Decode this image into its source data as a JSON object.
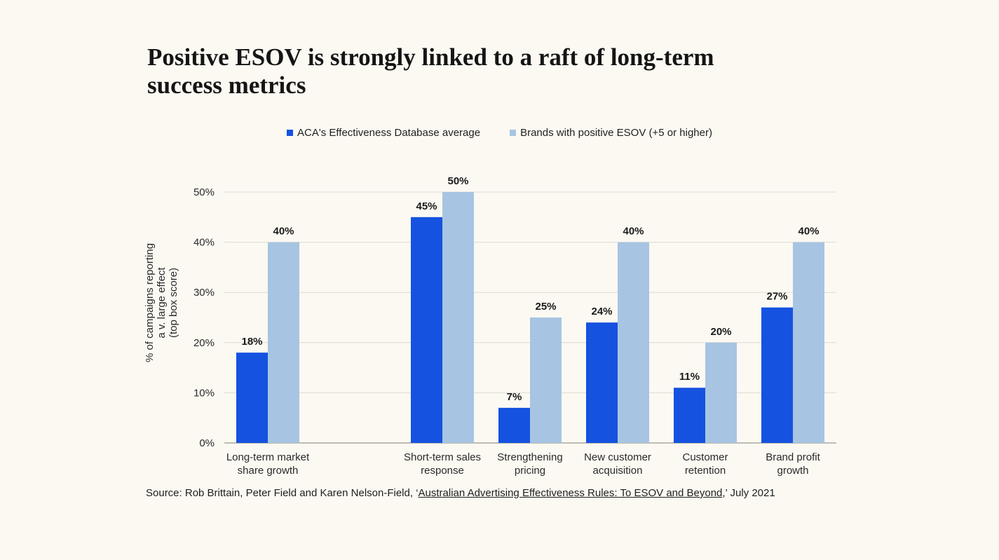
{
  "title": "Positive ESOV is strongly linked to a raft of long-term success metrics",
  "colors": {
    "series_1": "#1552e0",
    "series_2": "#a7c4e2",
    "grid": "#dedad2",
    "background": "#fbf9f2"
  },
  "chart_data": {
    "type": "bar",
    "title": "Positive ESOV is strongly linked to a raft of long-term success metrics",
    "ylabel": "% of campaigns reporting a v. large effect (top box score)",
    "ylabel_lines": [
      "% of campaigns reporting",
      "a v. large effect",
      "(top box score)"
    ],
    "xlabel": "",
    "ylim": [
      0,
      50
    ],
    "yticks": [
      "0%",
      "10%",
      "20%",
      "30%",
      "40%",
      "50%"
    ],
    "ytick_values": [
      0,
      10,
      20,
      30,
      40,
      50
    ],
    "grid": true,
    "legend_position": "top-center",
    "categories": [
      "Long-term market share growth",
      "Short-term sales response",
      "Strengthening pricing",
      "New customer acquisition",
      "Customer retention",
      "Brand profit growth"
    ],
    "category_lines": [
      [
        "Long-term market",
        "share growth"
      ],
      [
        "Short-term sales",
        "response"
      ],
      [
        "Strengthening",
        "pricing"
      ],
      [
        "New customer",
        "acquisition"
      ],
      [
        "Customer",
        "retention"
      ],
      [
        "Brand profit",
        "growth"
      ]
    ],
    "series": [
      {
        "name": "ACA's Effectiveness Database average",
        "values": [
          18,
          45,
          7,
          24,
          11,
          27
        ],
        "labels": [
          "18%",
          "45%",
          "7%",
          "24%",
          "11%",
          "27%"
        ]
      },
      {
        "name": "Brands with positive ESOV (+5 or higher)",
        "values": [
          40,
          50,
          25,
          40,
          20,
          40
        ],
        "labels": [
          "40%",
          "50%",
          "25%",
          "40%",
          "20%",
          "40%"
        ]
      }
    ]
  },
  "source": {
    "prefix": "Source: Rob Brittain, Peter Field and Karen Nelson-Field, ‘",
    "link": "Australian Advertising Effectiveness Rules: To ESOV and Beyond",
    "suffix": ",’  July 2021"
  }
}
